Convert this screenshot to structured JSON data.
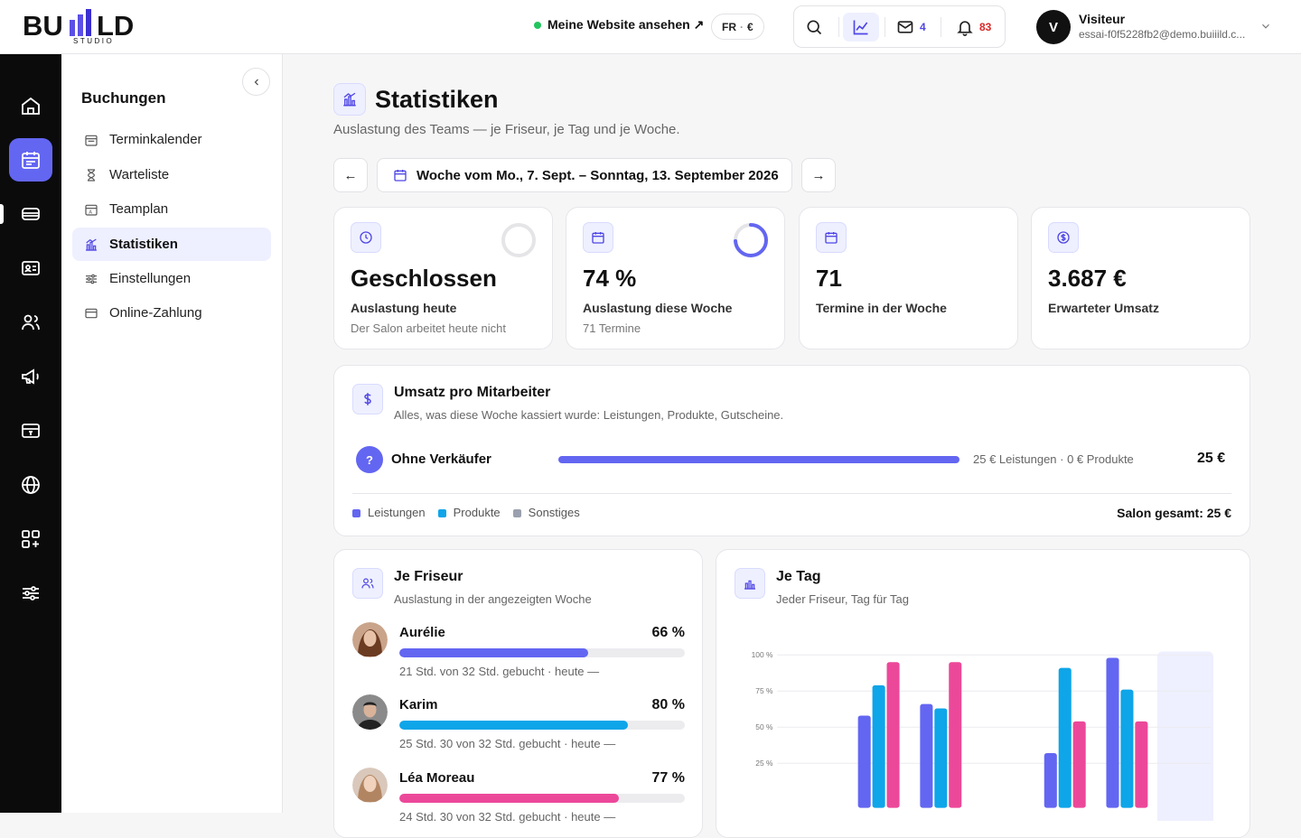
{
  "topbar": {
    "logo_word": "BU  LD",
    "logo_sub": "STUDIO",
    "view_site": "Meine Website ansehen ↗",
    "lang": "FR",
    "lang_sep": "·",
    "currency": "€",
    "messages_count": "4",
    "notifications_count": "83",
    "user_initial": "V",
    "user_name": "Visiteur",
    "user_email": "essai-f0f5228fb2@demo.buiiild.c..."
  },
  "rail": {
    "items": [
      "home-icon",
      "calendar-icon",
      "tray-icon",
      "id-card-icon",
      "users-icon",
      "megaphone-icon",
      "register-icon",
      "globe-icon",
      "apps-icon",
      "sliders-icon"
    ],
    "active_index": 1
  },
  "subnav": {
    "title": "Buchungen",
    "items": [
      {
        "label": "Terminkalender",
        "icon": "calendar-icon"
      },
      {
        "label": "Warteliste",
        "icon": "hourglass-icon"
      },
      {
        "label": "Teamplan",
        "icon": "calendar-team-icon"
      },
      {
        "label": "Statistiken",
        "icon": "chart-icon",
        "active": true
      },
      {
        "label": "Einstellungen",
        "icon": "sliders-icon"
      },
      {
        "label": "Online-Zahlung",
        "icon": "card-icon"
      }
    ]
  },
  "page": {
    "title": "Statistiken",
    "subtitle": "Auslastung des Teams — je Friseur, je Tag und je Woche.",
    "prev": "←",
    "next": "→",
    "week": "Woche vom Mo., 7. Sept. – Sonntag, 13. September 2026"
  },
  "kpis": [
    {
      "value": "Geschlossen",
      "label": "Auslastung heute",
      "sub": "Der Salon arbeitet heute nicht",
      "icon": "clock-icon",
      "ring": 0
    },
    {
      "value": "74 %",
      "label": "Auslastung diese Woche",
      "sub": "71 Termine",
      "icon": "calendar-icon",
      "ring": 0.74
    },
    {
      "value": "71",
      "label": "Termine in der Woche",
      "sub": "",
      "icon": "calendar-icon"
    },
    {
      "value": "3.687 €",
      "label": "Erwarteter Umsatz",
      "sub": "",
      "icon": "dollar-circle-icon"
    }
  ],
  "revenue": {
    "title": "Umsatz pro Mitarbeiter",
    "subtitle": "Alles, was diese Woche kassiert wurde: Leistungen, Produkte, Gutscheine.",
    "rows": [
      {
        "badge": "?",
        "name": "Ohne Verkäufer",
        "detail": "25 € Leistungen · 0 € Produkte",
        "total": "25 €"
      }
    ],
    "legend": [
      "Leistungen",
      "Produkte",
      "Sonstiges"
    ],
    "salon_total": "Salon gesamt: 25 €"
  },
  "per_staff": {
    "title": "Je Friseur",
    "subtitle": "Auslastung in der angezeigten Woche",
    "staff": [
      {
        "name": "Aurélie",
        "pct": "66 %",
        "value": 0.66,
        "color": "#6366f1",
        "detail": "21 Std. von 32 Std. gebucht · heute —"
      },
      {
        "name": "Karim",
        "pct": "80 %",
        "value": 0.8,
        "color": "#0ea5e9",
        "detail": "25 Std. 30 von 32 Std. gebucht · heute —"
      },
      {
        "name": "Léa Moreau",
        "pct": "77 %",
        "value": 0.77,
        "color": "#ec4899",
        "detail": "24 Std. 30 von 32 Std. gebucht · heute —"
      }
    ]
  },
  "per_day": {
    "title": "Je Tag",
    "subtitle": "Jeder Friseur, Tag für Tag"
  },
  "chart_data": {
    "type": "bar",
    "title": "Je Tag",
    "categories": [
      "",
      "",
      "",
      "",
      "",
      "",
      ""
    ],
    "series": [
      {
        "color": "#6366f1",
        "values": [
          null,
          58,
          66,
          null,
          32,
          98,
          null
        ]
      },
      {
        "color": "#0ea5e9",
        "values": [
          null,
          79,
          63,
          null,
          91,
          76,
          null
        ]
      },
      {
        "color": "#ec4899",
        "values": [
          null,
          95,
          95,
          null,
          54,
          54,
          null
        ]
      }
    ],
    "yticks": [
      "100 %",
      "75 %",
      "50 %",
      "25 %"
    ],
    "ylim": [
      0,
      100
    ],
    "highlight_index": 6
  },
  "colors": {
    "accent": "#6366f1",
    "products": "#0ea5e9",
    "other": "#9aa0ad",
    "alert": "#dc2626"
  }
}
